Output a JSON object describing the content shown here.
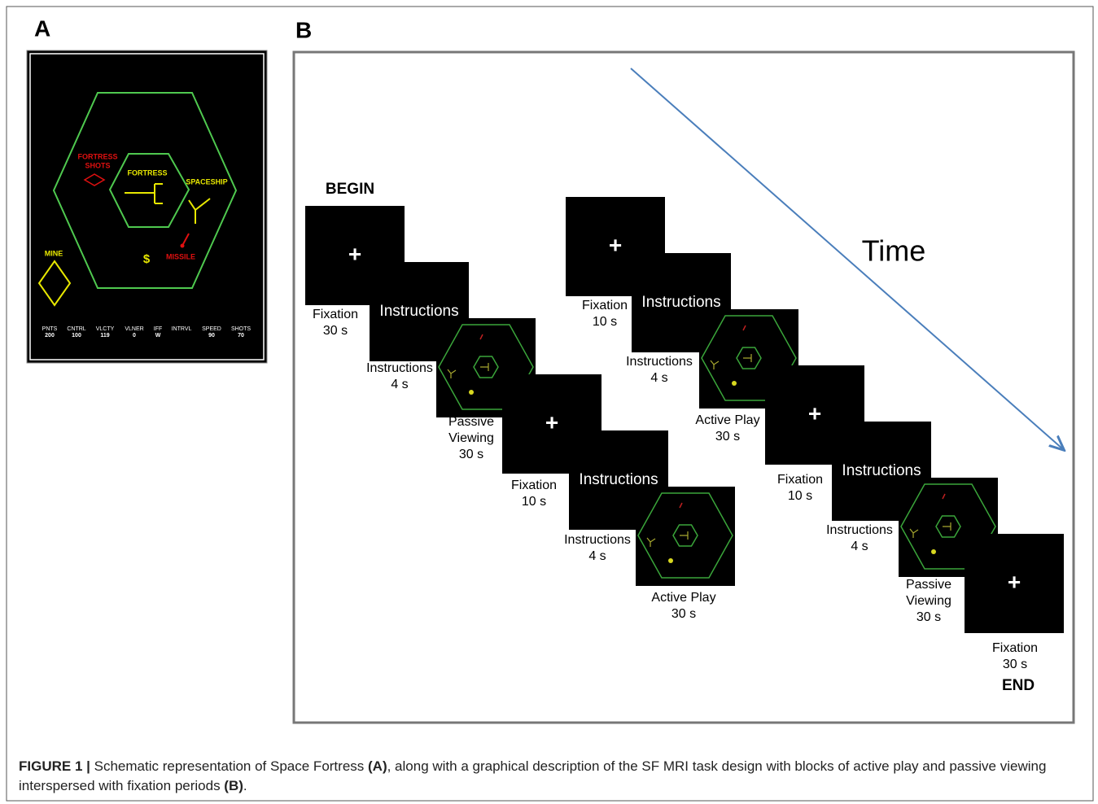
{
  "panel_a": {
    "label": "A",
    "fortress_shots": [
      "FORTRESS",
      "SHOTS"
    ],
    "fortress": "FORTRESS",
    "spaceship": "SPACESHIP",
    "mine": "MINE",
    "bonus": "$",
    "missile": "MISSILE",
    "stats": [
      {
        "name": "PNTS",
        "value": 200
      },
      {
        "name": "CNTRL",
        "value": 100
      },
      {
        "name": "VLCTY",
        "value": 119
      },
      {
        "name": "VLNER",
        "value": 0
      },
      {
        "name": "IFF",
        "value": "W"
      },
      {
        "name": "INTRVL"
      },
      {
        "name": "SPEED",
        "value": 90
      },
      {
        "name": "SHOTS",
        "value": 70
      }
    ]
  },
  "panel_b": {
    "label": "B",
    "begin": "BEGIN",
    "end": "END",
    "time": "Time",
    "blocks": [
      {
        "screen": "+",
        "caption": [
          "Fixation",
          "30 s"
        ]
      },
      {
        "screen": "Instructions",
        "caption": [
          "Instructions",
          "4 s"
        ]
      },
      {
        "caption": [
          "Passive",
          "Viewing",
          "30 s"
        ]
      },
      {
        "screen": "+",
        "caption": [
          "Fixation",
          "10 s"
        ]
      },
      {
        "screen": "Instructions",
        "caption": [
          "Instructions",
          "4 s"
        ]
      },
      {
        "caption": [
          "Active Play",
          "30 s"
        ]
      },
      {
        "screen": "+",
        "caption": [
          "Fixation",
          "10 s"
        ]
      },
      {
        "screen": "Instructions",
        "caption": [
          "Instructions",
          "4 s"
        ]
      },
      {
        "caption": [
          "Active Play",
          "30 s"
        ]
      },
      {
        "screen": "+",
        "caption": [
          "Fixation",
          "10 s"
        ]
      },
      {
        "screen": "Instructions",
        "caption": [
          "Instructions",
          "4 s"
        ]
      },
      {
        "caption": [
          "Passive",
          "Viewing",
          "30 s"
        ]
      },
      {
        "screen": "+",
        "caption": [
          "Fixation",
          "30 s"
        ]
      }
    ]
  },
  "caption": {
    "figure": "FIGURE 1 |",
    "parts": [
      " Schematic representation of Space Fortress ",
      "(A)",
      ", along with a graphical description of the SF MRI task design with blocks of active play and passive viewing interspersed with fixation periods ",
      "(B)",
      "."
    ]
  }
}
